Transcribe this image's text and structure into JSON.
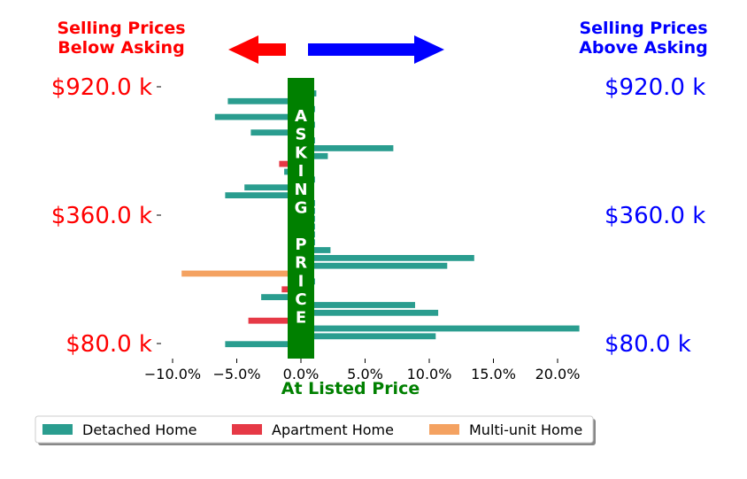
{
  "chart_data": {
    "type": "bar",
    "orientation": "horizontal",
    "title": "",
    "xlabel": "At Listed Price",
    "xlim": [
      -0.1,
      0.215
    ],
    "xticks": [
      -0.1,
      -0.05,
      0.0,
      0.05,
      0.1,
      0.15,
      0.2
    ],
    "xtick_labels": [
      "−10.0%",
      "−5.0%",
      "0.0%",
      "5.0%",
      "10.0%",
      "15.0%",
      "20.0%"
    ],
    "left_header": "Selling Prices\nBelow Asking",
    "right_header": "Selling Prices\nAbove Asking",
    "band_label": [
      "A",
      "S",
      "K",
      "I",
      "N",
      "G",
      "",
      "P",
      "R",
      "I",
      "C",
      "E"
    ],
    "price_ticks": [
      "$920.0 k",
      "$360.0 k",
      "$80.0 k"
    ],
    "legend": [
      "Detached Home",
      "Apartment Home",
      "Multi-unit Home"
    ],
    "legend_position": "bottom",
    "colors": {
      "Detached Home": "#2a9d8f",
      "Apartment Home": "#e63946",
      "Multi-unit Home": "#f4a261",
      "band": "#008000",
      "below": "#ff0000",
      "above": "#0000ff"
    },
    "bars": [
      {
        "value": 0.012,
        "type": "Detached Home"
      },
      {
        "value": -0.057,
        "type": "Detached Home"
      },
      {
        "value": 0.011,
        "type": "Detached Home"
      },
      {
        "value": -0.067,
        "type": "Detached Home"
      },
      {
        "value": 0.011,
        "type": "Detached Home"
      },
      {
        "value": -0.039,
        "type": "Detached Home"
      },
      {
        "value": 0.011,
        "type": "Detached Home"
      },
      {
        "value": 0.072,
        "type": "Detached Home"
      },
      {
        "value": 0.021,
        "type": "Detached Home"
      },
      {
        "value": -0.017,
        "type": "Apartment Home"
      },
      {
        "value": -0.013,
        "type": "Detached Home"
      },
      {
        "value": 0.011,
        "type": "Detached Home"
      },
      {
        "value": -0.044,
        "type": "Detached Home"
      },
      {
        "value": -0.059,
        "type": "Detached Home"
      },
      {
        "value": 0.011,
        "type": "Detached Home"
      },
      {
        "value": 0.011,
        "type": "Detached Home"
      },
      {
        "value": 0.011,
        "type": "Detached Home"
      },
      {
        "value": 0.011,
        "type": "Detached Home"
      },
      {
        "value": 0.011,
        "type": "Detached Home"
      },
      {
        "value": 0.011,
        "type": "Detached Home"
      },
      {
        "value": 0.023,
        "type": "Detached Home"
      },
      {
        "value": 0.135,
        "type": "Detached Home"
      },
      {
        "value": 0.114,
        "type": "Detached Home"
      },
      {
        "value": -0.093,
        "type": "Multi-unit Home"
      },
      {
        "value": 0.011,
        "type": "Detached Home"
      },
      {
        "value": -0.015,
        "type": "Apartment Home"
      },
      {
        "value": -0.031,
        "type": "Detached Home"
      },
      {
        "value": 0.089,
        "type": "Detached Home"
      },
      {
        "value": 0.107,
        "type": "Detached Home"
      },
      {
        "value": -0.041,
        "type": "Apartment Home"
      },
      {
        "value": 0.217,
        "type": "Detached Home"
      },
      {
        "value": 0.105,
        "type": "Detached Home"
      },
      {
        "value": -0.059,
        "type": "Detached Home"
      }
    ]
  }
}
